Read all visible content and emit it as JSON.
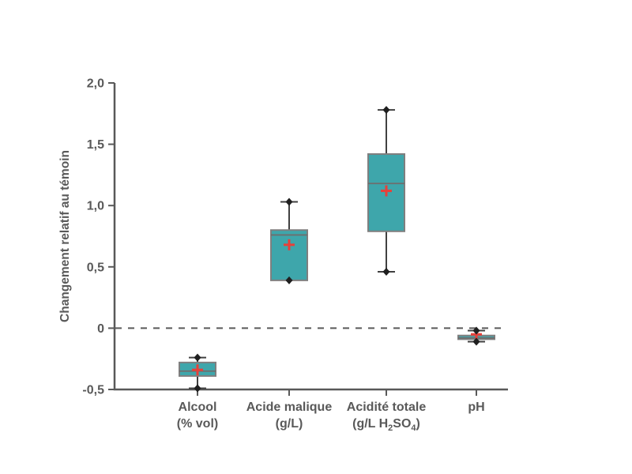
{
  "figure": {
    "background_color": "#ffffff",
    "title": ""
  },
  "chart_data": {
    "type": "boxplot",
    "title": "",
    "xlabel": "",
    "ylabel": "Changement relatif au témoin",
    "ylim": [
      -0.5,
      2.0
    ],
    "ytick_values": [
      2.0,
      1.5,
      1.0,
      0.5,
      0,
      -0.5
    ],
    "ytick_labels": [
      "2,0",
      "1,5",
      "1,0",
      "0,5",
      "0",
      "-0,5"
    ],
    "zero_reference_line": 0,
    "grid": false,
    "legend": false,
    "series": [
      {
        "label": "Alcool",
        "unit_parts": [
          [
            "(% vol)",
            false
          ]
        ],
        "whisker_low": -0.49,
        "q1": -0.39,
        "median": -0.35,
        "mean": -0.34,
        "q3": -0.28,
        "whisker_high": -0.24,
        "point_markers": [
          -0.24,
          -0.49
        ]
      },
      {
        "label": "Acide malique",
        "unit_parts": [
          [
            "(g/L)",
            false
          ]
        ],
        "whisker_low": 0.39,
        "q1": 0.39,
        "median": 0.76,
        "mean": 0.68,
        "q3": 0.8,
        "whisker_high": 1.03,
        "point_markers": [
          1.03,
          0.39
        ]
      },
      {
        "label": "Acidité totale",
        "unit_parts": [
          [
            "(g/L H",
            false
          ],
          [
            "2",
            true
          ],
          [
            "SO",
            false
          ],
          [
            "4",
            true
          ],
          [
            ")",
            false
          ]
        ],
        "whisker_low": 0.46,
        "q1": 0.79,
        "median": 1.18,
        "mean": 1.12,
        "q3": 1.42,
        "whisker_high": 1.78,
        "point_markers": [
          1.78,
          0.46
        ]
      },
      {
        "label": "pH",
        "unit_parts": [],
        "whisker_low": -0.11,
        "q1": -0.09,
        "median": -0.08,
        "mean": -0.05,
        "q3": -0.06,
        "whisker_high": -0.02,
        "point_markers": [
          -0.02,
          -0.11
        ]
      }
    ],
    "colors": {
      "box_fill": "#3ea6ab",
      "box_border": "#7f7f7f",
      "median_line": "#6e6e6e",
      "mean_marker": "#e8403a",
      "whisker": "#404040",
      "point_marker": "#1f1f1f",
      "axis": "#595959",
      "text": "#595959",
      "zero_line": "#595959"
    }
  }
}
